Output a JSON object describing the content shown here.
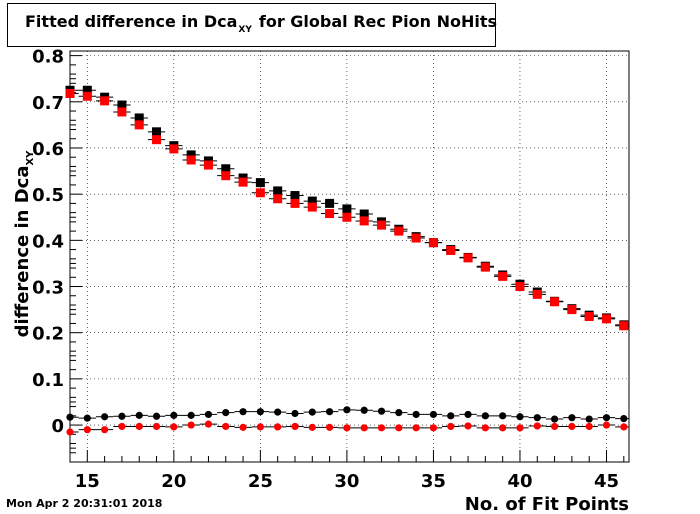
{
  "title": {
    "prefix": "Fitted difference in Dca",
    "subscript": "XY",
    "suffix": "for Global Rec Pion NoHits"
  },
  "datestamp": "Mon Apr  2 20:31:01 2018",
  "chart_data": {
    "type": "scatter",
    "title": "Fitted difference in Dca_XY for Global Rec Pion NoHits",
    "xlabel": "No. of Fit Points",
    "ylabel": "difference in Dca_XY",
    "xlim": [
      14,
      46.3
    ],
    "ylim": [
      -0.08,
      0.81
    ],
    "xticks": [
      15,
      20,
      25,
      30,
      35,
      40,
      45
    ],
    "xtick_labels": [
      "15",
      "20",
      "25",
      "30",
      "35",
      "40",
      "45"
    ],
    "yticks": [
      0,
      0.1,
      0.2,
      0.3,
      0.4,
      0.5,
      0.6,
      0.7,
      0.8
    ],
    "ytick_labels": [
      "0",
      "0.1",
      "0.2",
      "0.3",
      "0.4",
      "0.5",
      "0.6",
      "0.7",
      "0.8"
    ],
    "grid": true,
    "x": [
      14,
      15,
      16,
      17,
      18,
      19,
      20,
      21,
      22,
      23,
      24,
      25,
      26,
      27,
      28,
      29,
      30,
      31,
      32,
      33,
      34,
      35,
      36,
      37,
      38,
      39,
      40,
      41,
      42,
      43,
      44,
      45,
      46
    ],
    "series": [
      {
        "color": "#000000",
        "marker": "square",
        "values": [
          0.725,
          0.725,
          0.71,
          0.693,
          0.665,
          0.635,
          0.605,
          0.585,
          0.572,
          0.555,
          0.535,
          0.525,
          0.507,
          0.497,
          0.485,
          0.48,
          0.468,
          0.457,
          0.44,
          0.424,
          0.408,
          0.395,
          0.38,
          0.363,
          0.344,
          0.325,
          0.305,
          0.288,
          0.268,
          0.252,
          0.238,
          0.232,
          0.217
        ]
      },
      {
        "color": "#ff0000",
        "marker": "square",
        "values": [
          0.718,
          0.712,
          0.702,
          0.678,
          0.65,
          0.618,
          0.598,
          0.574,
          0.563,
          0.54,
          0.526,
          0.503,
          0.49,
          0.48,
          0.472,
          0.458,
          0.45,
          0.442,
          0.433,
          0.42,
          0.405,
          0.395,
          0.378,
          0.362,
          0.342,
          0.322,
          0.3,
          0.283,
          0.267,
          0.25,
          0.235,
          0.23,
          0.215
        ]
      },
      {
        "color": "#000000",
        "marker": "circle",
        "values": [
          0.017,
          0.015,
          0.018,
          0.019,
          0.021,
          0.019,
          0.021,
          0.021,
          0.023,
          0.027,
          0.029,
          0.029,
          0.028,
          0.025,
          0.028,
          0.029,
          0.033,
          0.032,
          0.03,
          0.027,
          0.023,
          0.023,
          0.02,
          0.023,
          0.02,
          0.02,
          0.018,
          0.016,
          0.013,
          0.016,
          0.013,
          0.016,
          0.014
        ]
      },
      {
        "color": "#ff0000",
        "marker": "circle",
        "values": [
          -0.015,
          -0.01,
          -0.01,
          -0.003,
          -0.003,
          -0.003,
          -0.004,
          0.0,
          0.002,
          -0.003,
          -0.005,
          -0.004,
          -0.004,
          -0.003,
          -0.005,
          -0.005,
          -0.006,
          -0.006,
          -0.006,
          -0.006,
          -0.006,
          -0.006,
          -0.003,
          -0.002,
          -0.006,
          -0.006,
          -0.006,
          -0.002,
          -0.003,
          -0.003,
          -0.003,
          0.0,
          -0.004
        ]
      }
    ]
  }
}
